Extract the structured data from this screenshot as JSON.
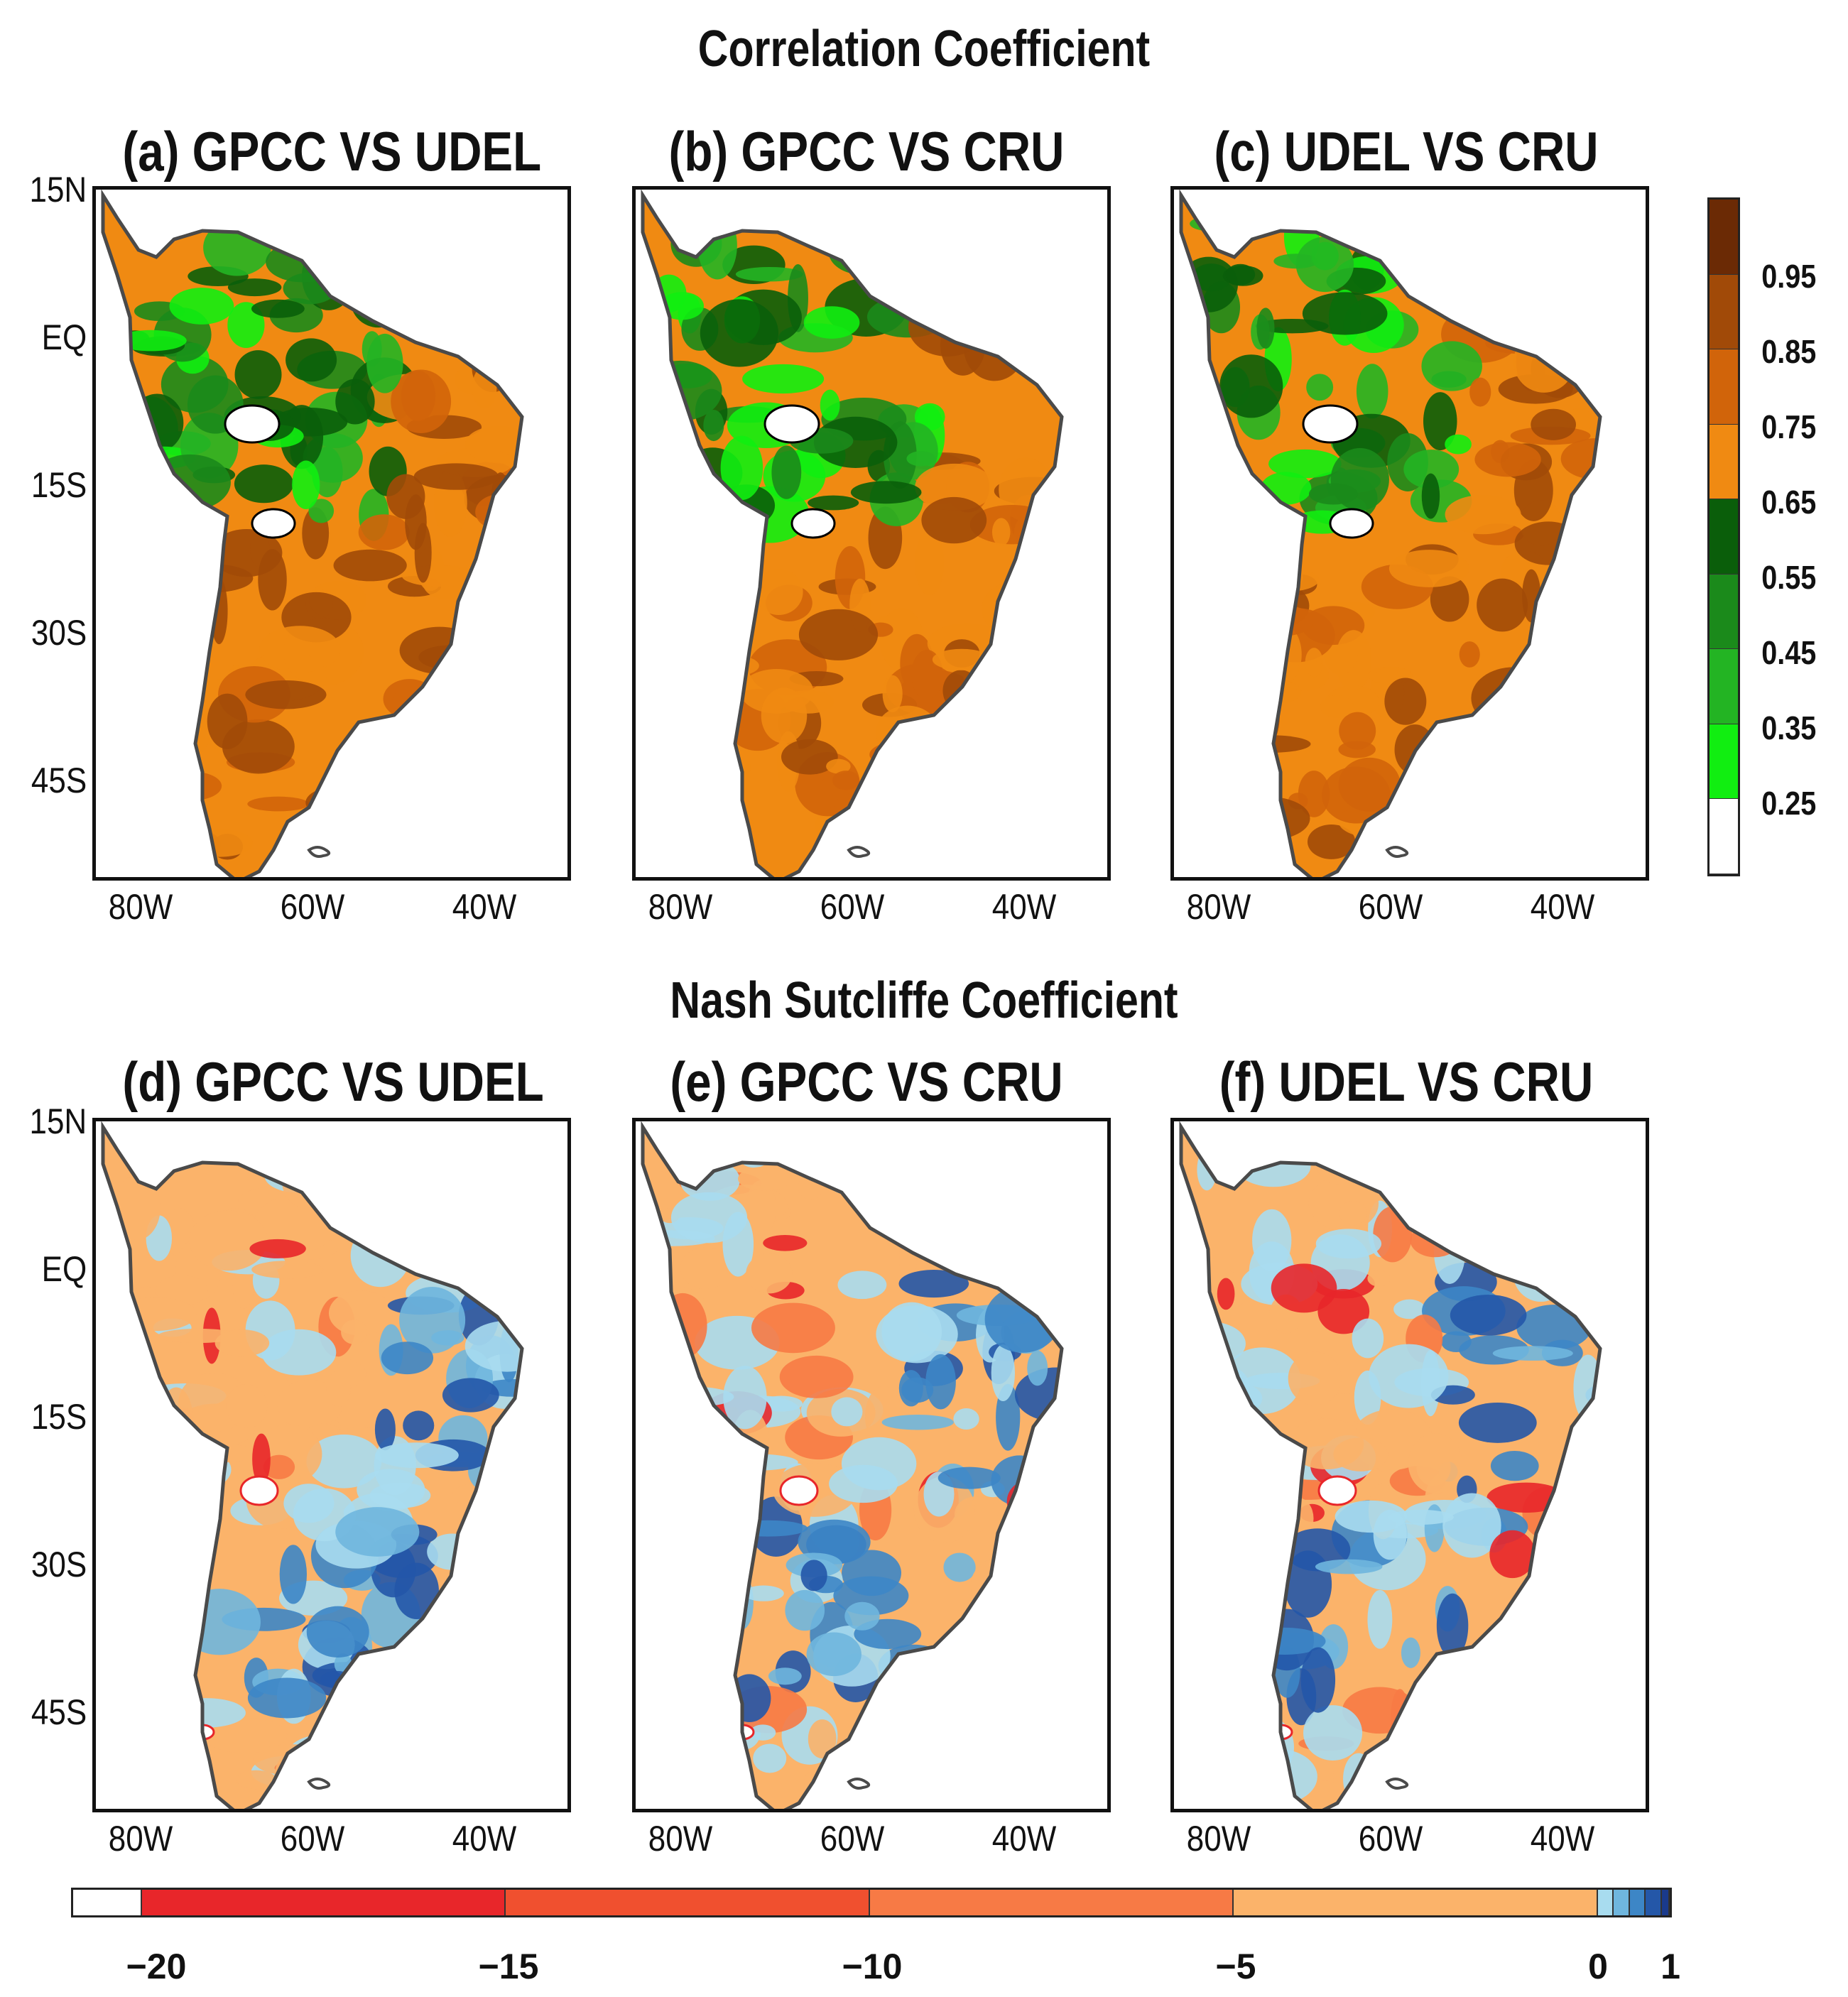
{
  "figure": {
    "corr_title": "Correlation Coefficient",
    "nse_title": "Nash Sutcliffe Coefficient"
  },
  "panels": [
    {
      "label": "(a) GPCC VS UDEL"
    },
    {
      "label": "(b) GPCC VS CRU"
    },
    {
      "label": "(c) UDEL VS CRU"
    },
    {
      "label": "(d) GPCC VS UDEL"
    },
    {
      "label": "(e) GPCC VS CRU"
    },
    {
      "label": "(f) UDEL VS CRU"
    }
  ],
  "axes": {
    "lon_ticks": [
      "80W",
      "60W",
      "40W"
    ],
    "lat_ticks": [
      "15N",
      "EQ",
      "15S",
      "30S",
      "45S"
    ]
  },
  "corr_colorbar": {
    "labels": [
      "0.95",
      "0.85",
      "0.75",
      "0.65",
      "0.55",
      "0.45",
      "0.35",
      "0.25"
    ],
    "colors_top_to_bottom": [
      "#6b2a05",
      "#a14a08",
      "#d1640a",
      "#f08a12",
      "#0a5e0a",
      "#1b8a1b",
      "#23b423",
      "#11ee11",
      "#ffffff"
    ]
  },
  "nse_colorbar": {
    "labels": [
      "−20",
      "−15",
      "−10",
      "−5",
      "0",
      "1"
    ],
    "colors": [
      "#ffffff",
      "#e8262a",
      "#f0502f",
      "#f77a45",
      "#fbb36a",
      "#a8dcef",
      "#6fb6de",
      "#3d86c6",
      "#2457a8",
      "#1a3a8c"
    ]
  },
  "palettes": {
    "land_corr": [
      "#f08a12",
      "#d1640a",
      "#a14a08",
      "#1b8a1b",
      "#23b423",
      "#0a5e0a",
      "#11ee11"
    ],
    "land_nse": [
      "#fbb36a",
      "#6fb6de",
      "#3d86c6",
      "#2457a8",
      "#a8dcef",
      "#f77a45",
      "#e8262a"
    ],
    "coast": "#4a4a4a"
  }
}
